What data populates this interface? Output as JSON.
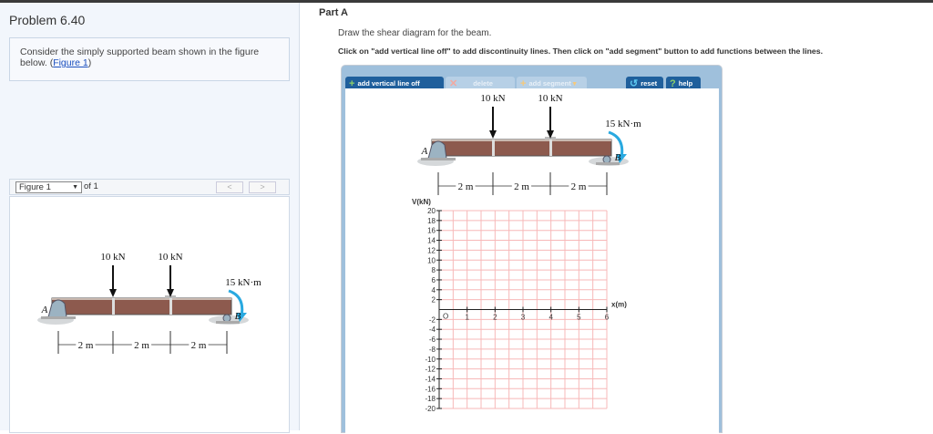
{
  "left": {
    "title": "Problem 6.40",
    "intro_text": "Consider the simply supported beam shown in the figure below. (",
    "intro_link": "Figure 1",
    "intro_close": ")",
    "figure_select": "Figure 1",
    "figure_of": "of 1",
    "prev": "<",
    "next": ">"
  },
  "right": {
    "part": "Part A",
    "instruction1": "Draw the shear diagram for the beam.",
    "instruction2": "Click on \"add vertical line off\" to add discontinuity lines. Then click on \"add segment\" button to add functions between the lines.",
    "toolbar": {
      "add_vertical": "add vertical line off",
      "delete": "delete",
      "add_segment": "add segment",
      "reset": "reset",
      "help": "help"
    }
  },
  "figure": {
    "load1": "10 kN",
    "load2": "10 kN",
    "moment": "15 kN·m",
    "support_a": "A",
    "support_b": "B",
    "dim1": "2 m",
    "dim2": "2 m",
    "dim3": "2 m"
  },
  "chart_data": {
    "type": "line",
    "xlabel": "x(m)",
    "ylabel": "V(kN)",
    "xlim": [
      0,
      6
    ],
    "ylim": [
      -20,
      20
    ],
    "xticks": [
      "1",
      "2",
      "3",
      "4",
      "5",
      "6"
    ],
    "origin_label": "O",
    "yticks": [
      "20",
      "18",
      "16",
      "14",
      "12",
      "10",
      "8",
      "6",
      "4",
      "2",
      "-2",
      "-4",
      "-6",
      "-8",
      "-10",
      "-12",
      "-14",
      "-16",
      "-18",
      "-20"
    ],
    "grid": true,
    "grid_color": "#f7b8b8",
    "series": []
  }
}
